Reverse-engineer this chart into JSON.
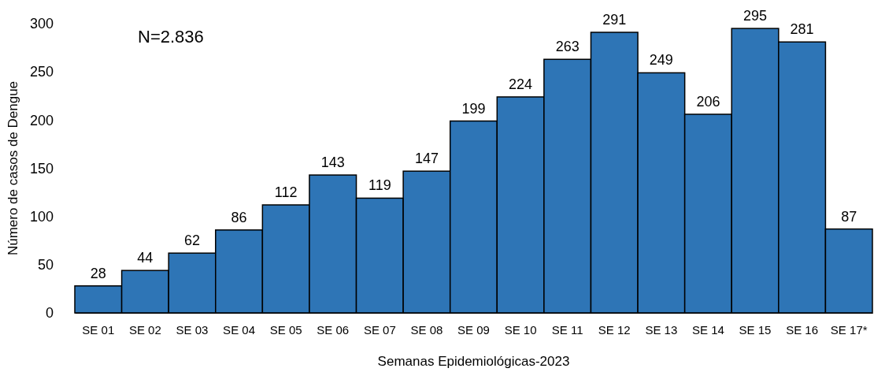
{
  "chart_data": {
    "type": "bar",
    "xlabel": "Semanas Epidemiológicas-2023",
    "ylabel": "Número de casos de Dengue",
    "categories": [
      "SE 01",
      "SE 02",
      "SE 03",
      "SE 04",
      "SE 05",
      "SE 06",
      "SE 07",
      "SE 08",
      "SE 09",
      "SE 10",
      "SE 11",
      "SE 12",
      "SE 13",
      "SE 14",
      "SE 15",
      "SE 16",
      "SE 17*"
    ],
    "values": [
      28,
      44,
      62,
      86,
      112,
      143,
      119,
      147,
      199,
      224,
      263,
      291,
      249,
      206,
      295,
      281,
      87
    ],
    "color": "#2e75b6",
    "ylim": [
      0,
      300
    ],
    "yticks": [
      0,
      50,
      100,
      150,
      200,
      250,
      300
    ],
    "data_labels": true,
    "grid": false,
    "annotations": [
      "N=2.836"
    ]
  }
}
